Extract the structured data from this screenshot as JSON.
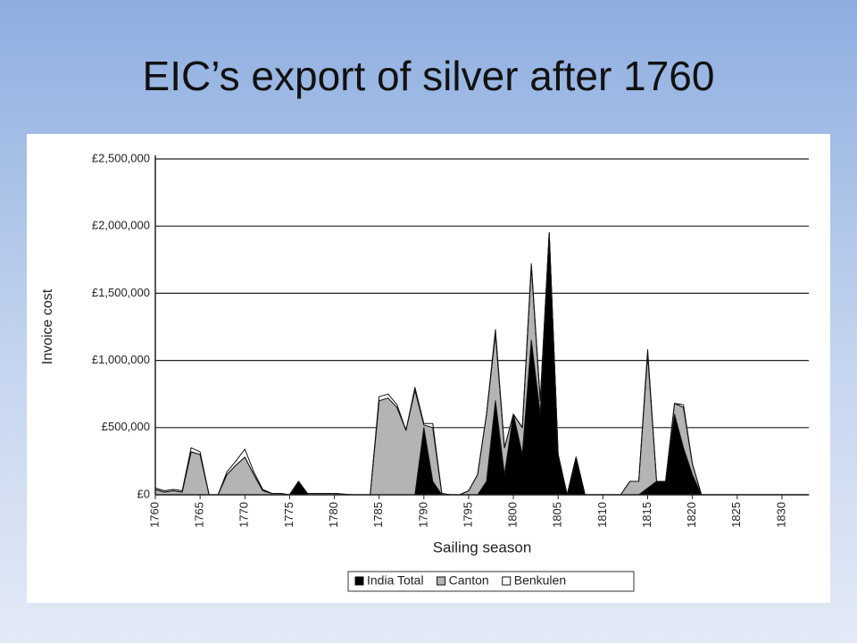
{
  "chart_data": {
    "type": "stacked-area",
    "title": "EIC’s export of silver after 1760",
    "x_label": "Sailing season",
    "y_label": "Invoice cost",
    "x": [
      1760,
      1761,
      1762,
      1763,
      1764,
      1765,
      1766,
      1767,
      1768,
      1769,
      1770,
      1771,
      1772,
      1773,
      1774,
      1775,
      1776,
      1777,
      1778,
      1779,
      1780,
      1781,
      1782,
      1783,
      1784,
      1785,
      1786,
      1787,
      1788,
      1789,
      1790,
      1791,
      1792,
      1793,
      1794,
      1795,
      1796,
      1797,
      1798,
      1799,
      1800,
      1801,
      1802,
      1803,
      1804,
      1805,
      1806,
      1807,
      1808,
      1809,
      1810,
      1811,
      1812,
      1813,
      1814,
      1815,
      1816,
      1817,
      1818,
      1819,
      1820,
      1821,
      1822,
      1823,
      1824,
      1825,
      1826,
      1827,
      1828,
      1829,
      1830,
      1831,
      1832,
      1833
    ],
    "series": [
      {
        "name": "India Total",
        "color": "#000000",
        "values": [
          0,
          0,
          0,
          0,
          0,
          0,
          0,
          0,
          0,
          0,
          0,
          0,
          0,
          0,
          0,
          0,
          100000,
          0,
          0,
          0,
          0,
          0,
          0,
          0,
          0,
          0,
          0,
          0,
          0,
          0,
          500000,
          100000,
          0,
          0,
          0,
          0,
          0,
          100000,
          700000,
          150000,
          600000,
          300000,
          1150000,
          600000,
          1950000,
          300000,
          0,
          280000,
          0,
          0,
          0,
          0,
          0,
          0,
          0,
          50000,
          100000,
          100000,
          600000,
          350000,
          150000,
          0,
          0,
          0,
          0,
          0,
          0,
          0,
          0,
          0,
          0,
          0,
          0,
          0
        ]
      },
      {
        "name": "Canton",
        "color": "#b4b4b4",
        "values": [
          40000,
          20000,
          30000,
          20000,
          320000,
          300000,
          0,
          0,
          150000,
          220000,
          280000,
          150000,
          30000,
          10000,
          10000,
          0,
          0,
          10000,
          10000,
          10000,
          10000,
          5000,
          0,
          0,
          0,
          700000,
          720000,
          650000,
          480000,
          780000,
          20000,
          400000,
          10000,
          0,
          0,
          30000,
          150000,
          500000,
          500000,
          200000,
          0,
          200000,
          550000,
          100000,
          0,
          0,
          0,
          0,
          0,
          0,
          0,
          0,
          0,
          100000,
          100000,
          1000000,
          0,
          0,
          80000,
          300000,
          80000,
          0,
          0,
          0,
          0,
          0,
          0,
          0,
          0,
          0,
          0,
          0,
          0,
          0
        ]
      },
      {
        "name": "Benkulen",
        "color": "#ffffff",
        "values": [
          10000,
          10000,
          10000,
          10000,
          30000,
          20000,
          0,
          0,
          20000,
          30000,
          60000,
          20000,
          10000,
          0,
          0,
          0,
          0,
          0,
          0,
          0,
          0,
          0,
          0,
          0,
          0,
          30000,
          30000,
          20000,
          0,
          20000,
          10000,
          30000,
          0,
          0,
          0,
          0,
          0,
          0,
          30000,
          0,
          0,
          0,
          20000,
          0,
          0,
          0,
          0,
          0,
          0,
          0,
          0,
          0,
          0,
          0,
          0,
          30000,
          0,
          0,
          0,
          20000,
          0,
          0,
          0,
          0,
          0,
          0,
          0,
          0,
          0,
          0,
          0,
          0,
          0,
          0
        ]
      }
    ],
    "xlim": [
      1760,
      1833
    ],
    "xticks": [
      1760,
      1765,
      1770,
      1775,
      1780,
      1785,
      1790,
      1795,
      1800,
      1805,
      1810,
      1815,
      1820,
      1825,
      1830
    ],
    "ylim": [
      0,
      2500000
    ],
    "yticks": [
      {
        "value": 0,
        "label": "£0"
      },
      {
        "value": 500000,
        "label": "£500,000"
      },
      {
        "value": 1000000,
        "label": "£1,000,000"
      },
      {
        "value": 1500000,
        "label": "£1,500,000"
      },
      {
        "value": 2000000,
        "label": "£2,000,000"
      },
      {
        "value": 2500000,
        "label": "£2,500,000"
      }
    ],
    "grid": true,
    "legend": "bottom"
  }
}
